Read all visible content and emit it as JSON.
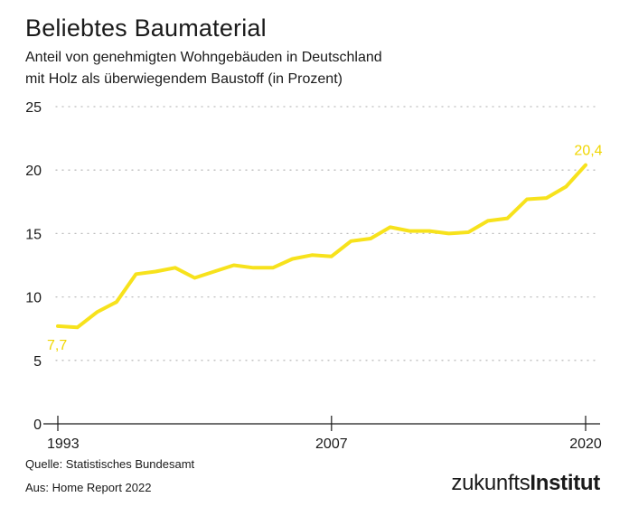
{
  "header": {
    "title": "Beliebtes Baumaterial",
    "subtitle_line1": "Anteil von genehmigten Wohngebäuden in Deutschland",
    "subtitle_line2": "mit Holz als überwiegendem Baustoff (in Prozent)"
  },
  "footer": {
    "source": "Quelle: Statistisches Bundesamt",
    "from": "Aus: Home Report 2022",
    "logo_light": "zukunfts",
    "logo_bold": "Institut"
  },
  "colors": {
    "line": "#f7e21c",
    "label": "#f0d600",
    "grid": "#bdbdbd",
    "axis": "#1a1a1a"
  },
  "chart_data": {
    "type": "line",
    "title": "Beliebtes Baumaterial",
    "subtitle": "Anteil von genehmigten Wohngebäuden in Deutschland mit Holz als überwiegendem Baustoff (in Prozent)",
    "xlabel": "",
    "ylabel": "",
    "x": [
      1993,
      1994,
      1995,
      1996,
      1997,
      1998,
      1999,
      2000,
      2001,
      2002,
      2003,
      2004,
      2005,
      2006,
      2007,
      2008,
      2009,
      2010,
      2011,
      2012,
      2013,
      2014,
      2015,
      2016,
      2017,
      2018,
      2019,
      2020
    ],
    "series": [
      {
        "values": [
          7.7,
          7.6,
          8.8,
          9.6,
          11.8,
          12.0,
          12.3,
          11.5,
          12.0,
          12.5,
          12.3,
          12.3,
          13.0,
          13.3,
          13.2,
          14.4,
          14.6,
          15.5,
          15.2,
          15.2,
          15.0,
          15.1,
          16.0,
          16.2,
          17.7,
          17.8,
          18.7,
          20.4
        ]
      }
    ],
    "xticks": [
      "1993",
      "2007",
      "2020"
    ],
    "yticks": [
      "0",
      "5",
      "10",
      "15",
      "20",
      "25"
    ],
    "ylim": [
      0,
      25
    ],
    "xlim": [
      1993,
      2020
    ],
    "grid": true,
    "annotations": {
      "first": "7,7",
      "last": "20,4"
    }
  }
}
